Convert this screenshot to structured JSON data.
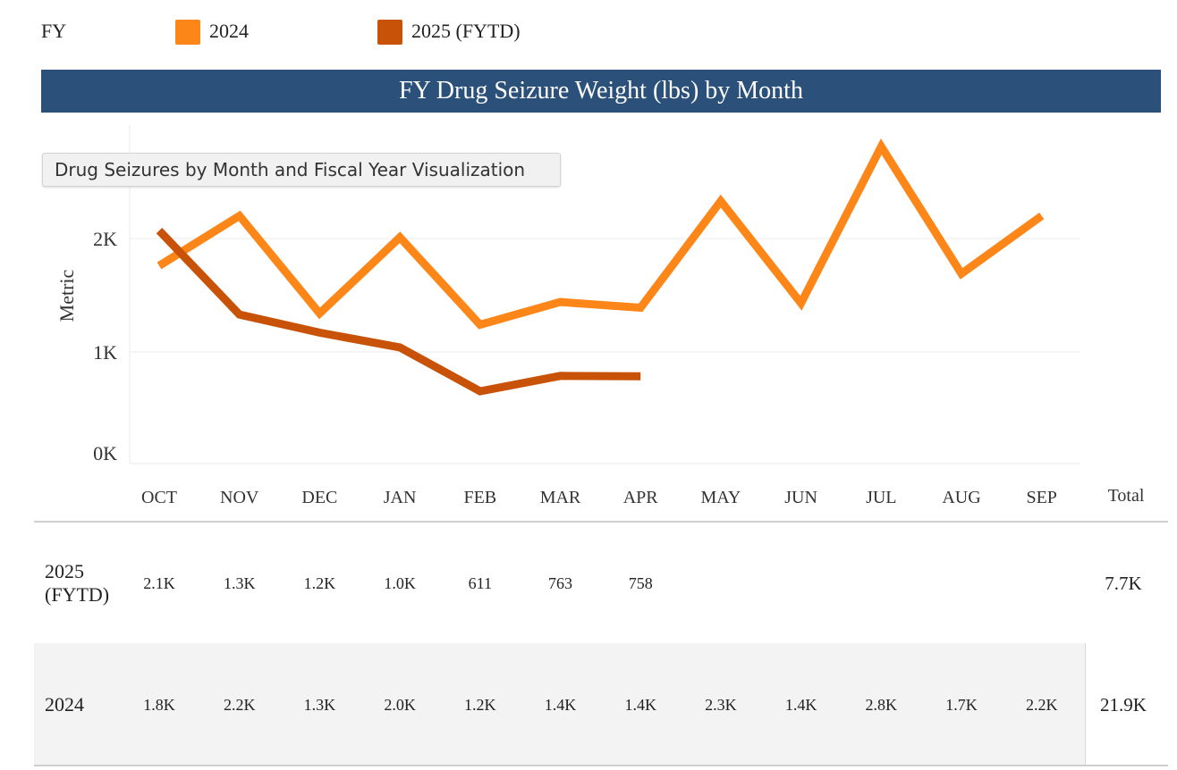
{
  "legend": {
    "title": "FY",
    "items": [
      {
        "label": "2024",
        "color": "#fd8619"
      },
      {
        "label": "2025 (FYTD)",
        "color": "#c85208"
      }
    ]
  },
  "header": {
    "title": "FY Drug Seizure Weight (lbs) by Month",
    "color": "#2b507a"
  },
  "tooltip": {
    "text": "Drug Seizures by Month and Fiscal Year Visualization"
  },
  "chart_data": {
    "type": "line",
    "title": "FY Drug Seizure Weight (lbs) by Month",
    "xlabel": "",
    "ylabel": "Metric",
    "categories": [
      "OCT",
      "NOV",
      "DEC",
      "JAN",
      "FEB",
      "MAR",
      "APR",
      "MAY",
      "JUN",
      "JUL",
      "AUG",
      "SEP"
    ],
    "yticks": [
      {
        "value": 0,
        "label": "0K"
      },
      {
        "value": 1000,
        "label": "1K"
      },
      {
        "value": 2000,
        "label": "2K"
      }
    ],
    "ylim": [
      0,
      2950
    ],
    "grid": true,
    "legend_position": "top",
    "series": [
      {
        "name": "2024",
        "color": "#fd8619",
        "values": [
          1760,
          2200,
          1340,
          2010,
          1240,
          1440,
          1390,
          2330,
          1430,
          2810,
          1690,
          2200
        ]
      },
      {
        "name": "2025 (FYTD)",
        "color": "#c85208",
        "values": [
          2070,
          1330,
          1170,
          1040,
          611,
          763,
          758,
          null,
          null,
          null,
          null,
          null
        ]
      }
    ]
  },
  "table": {
    "total_header": "Total",
    "rows": [
      {
        "label": "2025 (FYTD)",
        "values": [
          "2.1K",
          "1.3K",
          "1.2K",
          "1.0K",
          "611",
          "763",
          "758",
          "",
          "",
          "",
          "",
          ""
        ],
        "total": "7.7K"
      },
      {
        "label": "2024",
        "values": [
          "1.8K",
          "2.2K",
          "1.3K",
          "2.0K",
          "1.2K",
          "1.4K",
          "1.4K",
          "2.3K",
          "1.4K",
          "2.8K",
          "1.7K",
          "2.2K"
        ],
        "total": "21.9K"
      }
    ]
  }
}
